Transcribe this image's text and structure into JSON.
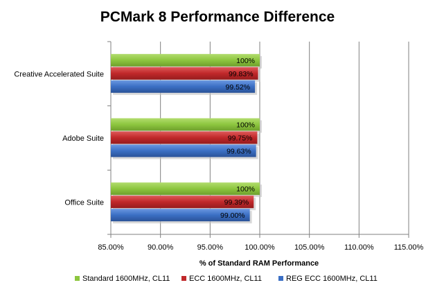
{
  "chart_data": {
    "type": "bar",
    "orientation": "horizontal",
    "title": "PCMark 8 Performance Difference",
    "xlabel": "% of Standard RAM Performance",
    "ylabel": "",
    "xlim": [
      85,
      115
    ],
    "xticks": [
      85,
      90,
      95,
      100,
      105,
      110,
      115
    ],
    "xtick_labels": [
      "85.00%",
      "90.00%",
      "95.00%",
      "100.00%",
      "105.00%",
      "110.00%",
      "115.00%"
    ],
    "grid": "vertical",
    "legend_position": "bottom",
    "categories": [
      "Creative Accelerated Suite",
      "Adobe Suite",
      "Office Suite"
    ],
    "series": [
      {
        "name": "Standard 1600MHz, CL11",
        "color": "#8DC63F",
        "values": [
          100,
          100,
          100
        ],
        "labels": [
          "100%",
          "100%",
          "100%"
        ]
      },
      {
        "name": "ECC 1600MHz, CL11",
        "color": "#C0282A",
        "values": [
          99.83,
          99.75,
          99.39
        ],
        "labels": [
          "99.83%",
          "99.75%",
          "99.39%"
        ]
      },
      {
        "name": "REG ECC 1600MHz, CL11",
        "color": "#3B6FC4",
        "values": [
          99.52,
          99.63,
          99.0
        ],
        "labels": [
          "99.52%",
          "99.63%",
          "99.00%"
        ]
      }
    ]
  }
}
